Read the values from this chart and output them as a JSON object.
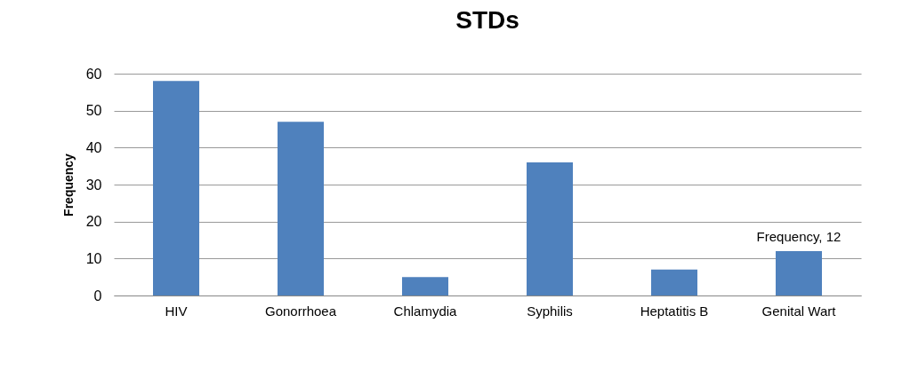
{
  "chart_data": {
    "type": "bar",
    "title": "STDs",
    "ylabel": "Frequency",
    "categories": [
      "HIV",
      "Gonorrhoea",
      "Chlamydia",
      "Syphilis",
      "Heptatitis B",
      "Genital Wart"
    ],
    "values": [
      58,
      47,
      5,
      36,
      7,
      12
    ],
    "value_labels": [
      null,
      null,
      null,
      null,
      null,
      "Frequency, 12"
    ],
    "color": "#4f81bd",
    "ylim": [
      0,
      60
    ],
    "yticks": [
      0,
      10,
      20,
      30,
      40,
      50,
      60
    ],
    "grid": "y"
  }
}
